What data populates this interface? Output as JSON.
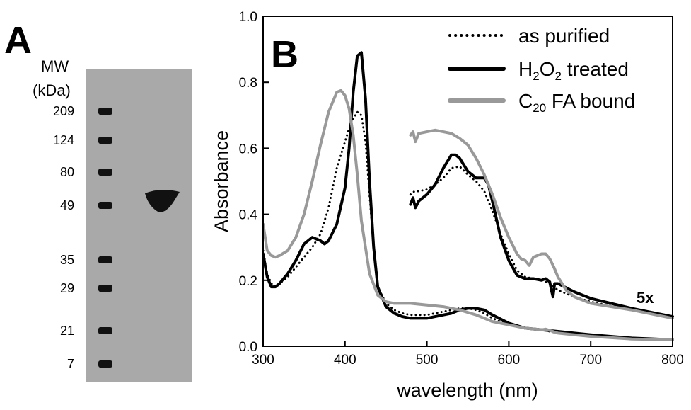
{
  "panel_a": {
    "label": "A",
    "mw_title_line1": "MW",
    "mw_title_line2": "(kDa)",
    "markers": [
      {
        "label": "209",
        "kda": 209
      },
      {
        "label": "124",
        "kda": 124
      },
      {
        "label": "80",
        "kda": 80
      },
      {
        "label": "49",
        "kda": 49
      },
      {
        "label": "35",
        "kda": 35
      },
      {
        "label": "29",
        "kda": 29
      },
      {
        "label": "21",
        "kda": 21
      },
      {
        "label": "7",
        "kda": 7
      }
    ],
    "sample_band_kda": 49,
    "colors": {
      "gel": "#a9a9a9",
      "band": "#111111"
    }
  },
  "panel_b": {
    "label": "B",
    "annotation": "5x"
  },
  "chart_data": {
    "type": "line",
    "title": "",
    "xlabel": "wavelength (nm)",
    "ylabel": "Absorbance",
    "xlim": [
      300,
      800
    ],
    "ylim": [
      0,
      1.0
    ],
    "xticks": [
      "300",
      "400",
      "500",
      "600",
      "700",
      "800"
    ],
    "yticks": [
      "0.0",
      "0.2",
      "0.4",
      "0.6",
      "0.8",
      "1.0"
    ],
    "grid": false,
    "legend_position": "top-right",
    "legend": [
      {
        "name_main": "as purified",
        "pre": "",
        "sub1": "",
        "mid": "",
        "sub2": "",
        "post": ""
      },
      {
        "name_main": "",
        "pre": "H",
        "sub1": "2",
        "mid": "O",
        "sub2": "2",
        "post": " treated"
      },
      {
        "name_main": "",
        "pre": "C",
        "sub1": "20",
        "mid": "",
        "sub2": "",
        "post": " FA bound"
      }
    ],
    "series": [
      {
        "name": "as purified",
        "style": "dotted",
        "color": "#000000",
        "x": [
          300,
          305,
          310,
          315,
          320,
          330,
          340,
          350,
          360,
          370,
          380,
          390,
          400,
          405,
          410,
          415,
          420,
          425,
          430,
          435,
          440,
          450,
          460,
          470,
          480,
          490,
          500,
          510,
          520,
          530,
          540,
          550,
          560,
          570,
          580,
          600,
          620,
          640,
          650,
          660,
          680,
          700,
          750,
          800
        ],
        "y": [
          0.29,
          0.22,
          0.19,
          0.18,
          0.19,
          0.21,
          0.24,
          0.27,
          0.3,
          0.34,
          0.42,
          0.54,
          0.62,
          0.66,
          0.69,
          0.71,
          0.7,
          0.62,
          0.46,
          0.3,
          0.18,
          0.13,
          0.11,
          0.1,
          0.095,
          0.095,
          0.095,
          0.1,
          0.105,
          0.11,
          0.115,
          0.115,
          0.11,
          0.1,
          0.085,
          0.065,
          0.055,
          0.05,
          0.045,
          0.04,
          0.035,
          0.03,
          0.022,
          0.02
        ]
      },
      {
        "name": "H2O2 treated",
        "style": "solid",
        "color": "#000000",
        "x": [
          300,
          305,
          310,
          315,
          320,
          330,
          340,
          350,
          360,
          370,
          375,
          380,
          390,
          400,
          405,
          410,
          415,
          420,
          425,
          430,
          435,
          440,
          450,
          460,
          470,
          480,
          490,
          500,
          510,
          520,
          530,
          540,
          550,
          560,
          570,
          580,
          600,
          620,
          640,
          660,
          680,
          700,
          750,
          800
        ],
        "y": [
          0.28,
          0.21,
          0.18,
          0.18,
          0.19,
          0.22,
          0.26,
          0.31,
          0.33,
          0.32,
          0.31,
          0.32,
          0.37,
          0.48,
          0.6,
          0.77,
          0.88,
          0.89,
          0.75,
          0.5,
          0.3,
          0.18,
          0.12,
          0.1,
          0.09,
          0.085,
          0.085,
          0.085,
          0.09,
          0.095,
          0.1,
          0.11,
          0.115,
          0.115,
          0.11,
          0.095,
          0.07,
          0.055,
          0.05,
          0.045,
          0.04,
          0.035,
          0.025,
          0.02
        ]
      },
      {
        "name": "C20 FA bound",
        "style": "solid",
        "color": "#999999",
        "x": [
          300,
          305,
          310,
          315,
          320,
          330,
          340,
          350,
          360,
          370,
          380,
          390,
          395,
          400,
          405,
          410,
          415,
          420,
          430,
          440,
          450,
          460,
          470,
          480,
          500,
          520,
          540,
          560,
          580,
          600,
          620,
          640,
          645,
          650,
          660,
          680,
          700,
          750,
          800
        ],
        "y": [
          0.37,
          0.29,
          0.275,
          0.27,
          0.275,
          0.29,
          0.33,
          0.4,
          0.5,
          0.61,
          0.71,
          0.77,
          0.775,
          0.76,
          0.72,
          0.64,
          0.52,
          0.38,
          0.22,
          0.155,
          0.135,
          0.13,
          0.13,
          0.13,
          0.125,
          0.12,
          0.11,
          0.095,
          0.075,
          0.065,
          0.055,
          0.05,
          0.052,
          0.048,
          0.04,
          0.035,
          0.03,
          0.022,
          0.02
        ]
      },
      {
        "name": "as purified (5x)",
        "style": "dotted",
        "color": "#000000",
        "x": [
          480,
          485,
          490,
          500,
          510,
          520,
          530,
          540,
          550,
          560,
          570,
          580,
          590,
          600,
          610,
          620,
          640,
          650,
          660,
          680,
          700,
          750,
          800
        ],
        "y": [
          0.46,
          0.47,
          0.47,
          0.475,
          0.49,
          0.51,
          0.54,
          0.545,
          0.52,
          0.5,
          0.47,
          0.41,
          0.34,
          0.28,
          0.23,
          0.21,
          0.2,
          0.19,
          0.17,
          0.15,
          0.135,
          0.11,
          0.09
        ]
      },
      {
        "name": "H2O2 treated (5x)",
        "style": "solid",
        "color": "#000000",
        "x": [
          480,
          483,
          486,
          490,
          500,
          510,
          520,
          530,
          535,
          540,
          550,
          560,
          570,
          575,
          580,
          590,
          600,
          610,
          620,
          630,
          640,
          645,
          650,
          652,
          654,
          656,
          660,
          680,
          700,
          750,
          800
        ],
        "y": [
          0.43,
          0.45,
          0.42,
          0.44,
          0.46,
          0.49,
          0.54,
          0.58,
          0.58,
          0.57,
          0.53,
          0.51,
          0.51,
          0.49,
          0.44,
          0.33,
          0.26,
          0.215,
          0.205,
          0.205,
          0.2,
          0.205,
          0.195,
          0.17,
          0.15,
          0.19,
          0.19,
          0.165,
          0.145,
          0.115,
          0.09
        ]
      },
      {
        "name": "C20 FA bound (5x)",
        "style": "solid",
        "color": "#999999",
        "x": [
          480,
          483,
          486,
          490,
          500,
          510,
          520,
          530,
          540,
          550,
          560,
          570,
          580,
          590,
          600,
          610,
          615,
          620,
          625,
          630,
          640,
          645,
          650,
          655,
          660,
          670,
          680,
          700,
          750,
          800
        ],
        "y": [
          0.64,
          0.65,
          0.62,
          0.645,
          0.65,
          0.655,
          0.65,
          0.645,
          0.63,
          0.61,
          0.57,
          0.52,
          0.46,
          0.39,
          0.33,
          0.28,
          0.265,
          0.26,
          0.245,
          0.27,
          0.28,
          0.28,
          0.265,
          0.24,
          0.21,
          0.17,
          0.15,
          0.13,
          0.11,
          0.085
        ]
      }
    ]
  }
}
